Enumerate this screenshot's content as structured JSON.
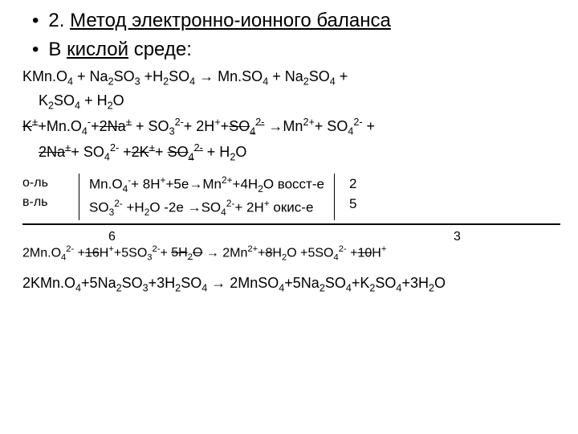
{
  "heading1_prefix": "2. ",
  "heading1_underline": "Метод электронно-ионного баланса",
  "heading2_prefix": "В ",
  "heading2_underline": "кислой",
  "heading2_suffix": " среде:",
  "eq1a": "KMn.O4 + Na2SO3 +H2SO4 → Mn.SO4 + Na2SO4 +",
  "eq1b": "K2SO4 + H2O",
  "eq2a_strike": "K+",
  "eq2a_rest": "+Mn.O4-+2Na+ + SO32-+ 2H++SO42- →Mn2++ SO42- +",
  "eq2b": "2Na++ SO42- +2K++ SO42- + H2O",
  "label_ol": "о-ль",
  "label_vl": "в-ль",
  "half1": "Mn.O4-+ 8H++5e→Mn2++4H2O восст-е",
  "half2": "SO32- +H2O -2e →SO42-+ 2H+ окис-е",
  "mult1": "2",
  "mult2": "5",
  "coef6": "6",
  "coef3": "3",
  "final_ionic_part1": "2Mn.O42- +",
  "final_ionic_strike1": "16",
  "final_ionic_part2": "H++5SO32-+ 5H2O → 2Mn2++",
  "final_ionic_strike2": "8",
  "final_ionic_part3": "H2O +5SO42- +10H+",
  "final_molecular": "2KMn.O4+5Na2SO3+3H2SO4 → 2MnSO4+5Na2SO4+K2SO4+3H2O"
}
